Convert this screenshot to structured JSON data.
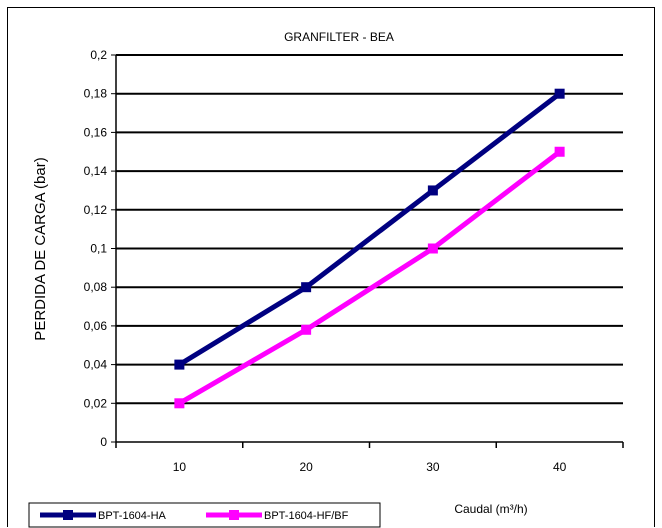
{
  "chart_data": {
    "type": "line",
    "title": "GRANFILTER - BEA",
    "xlabel": "Caudal (m³/h)",
    "ylabel": "PERDIDA DE CARGA (bar)",
    "categories": [
      "10",
      "20",
      "30",
      "40"
    ],
    "x": [
      10,
      20,
      30,
      40
    ],
    "ylim": [
      0,
      0.2
    ],
    "yticks": [
      "0",
      "0,02",
      "0,04",
      "0,06",
      "0,08",
      "0,1",
      "0,12",
      "0,14",
      "0,16",
      "0,18",
      "0,2"
    ],
    "grid": true,
    "legend_position": "bottom",
    "series": [
      {
        "name": "BPT-1604-HA",
        "color": "#000080",
        "values": [
          0.04,
          0.08,
          0.13,
          0.18
        ]
      },
      {
        "name": "BPT-1604-HF/BF",
        "color": "#ff00ff",
        "values": [
          0.02,
          0.058,
          0.1,
          0.15
        ]
      }
    ]
  }
}
